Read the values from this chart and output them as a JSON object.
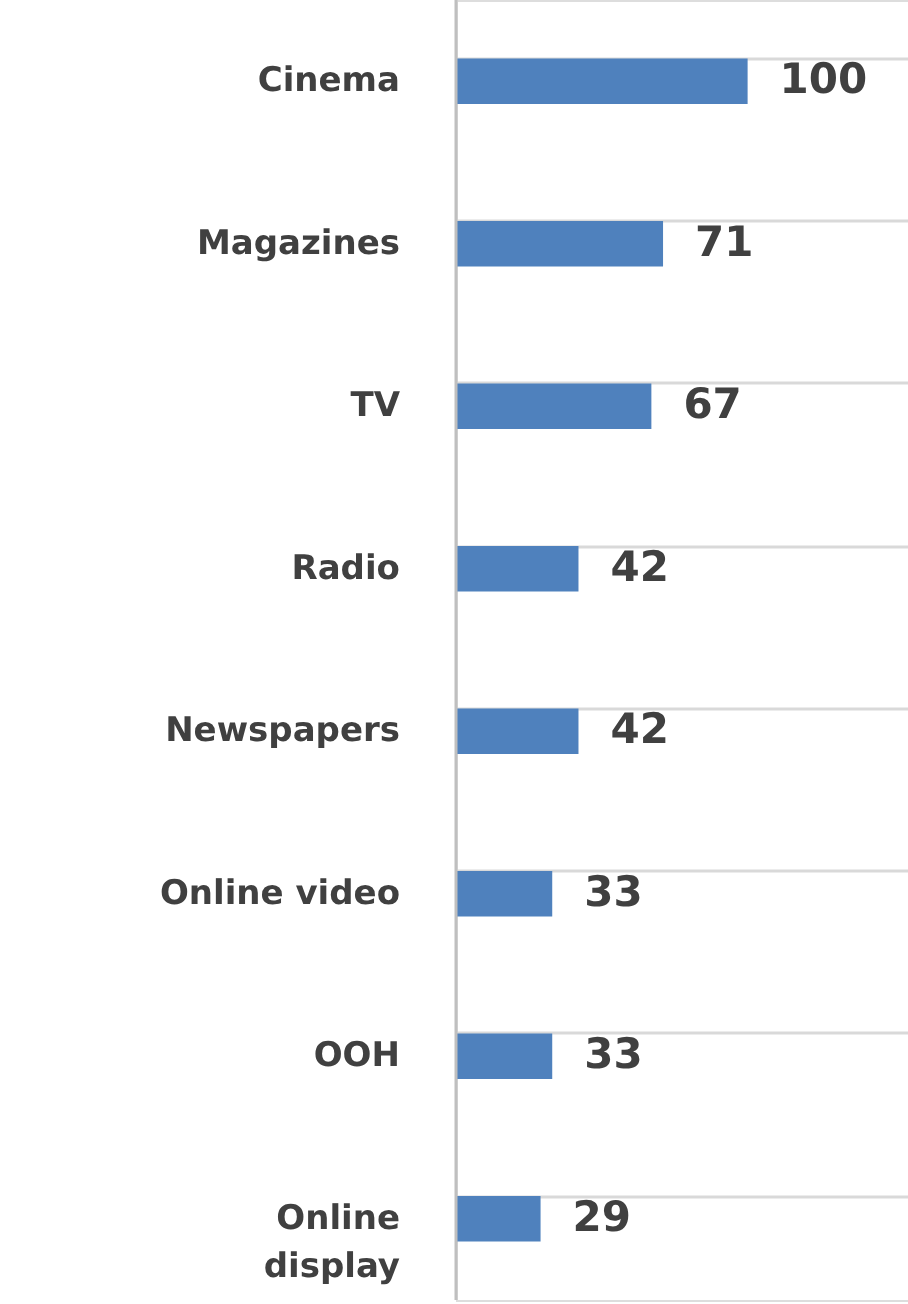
{
  "chart_data": {
    "type": "bar",
    "orientation": "horizontal",
    "categories": [
      "Cinema",
      "Magazines",
      "TV",
      "Radio",
      "Newspapers",
      "Online video",
      "OOH",
      "Online display"
    ],
    "values": [
      100,
      71,
      67,
      42,
      42,
      33,
      33,
      29
    ],
    "color": "#4f81bd",
    "data_labels": true,
    "grid": "y"
  }
}
